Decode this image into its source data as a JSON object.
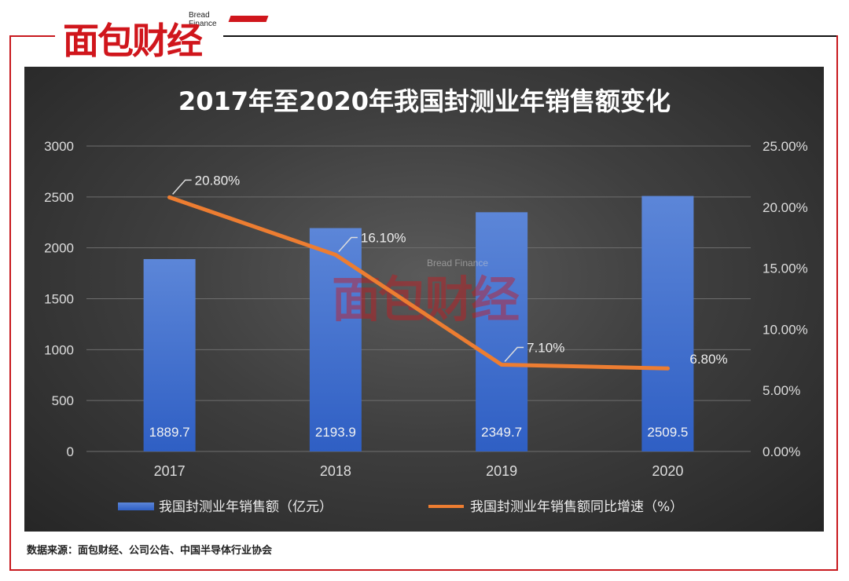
{
  "header": {
    "logo_text": "面包财经",
    "logo_subtitle": "Bread Finance"
  },
  "watermark": {
    "text": "面包财经",
    "subtitle": "Bread Finance"
  },
  "footer": {
    "source": "数据来源：面包财经、公司公告、中国半导体行业协会"
  },
  "colors": {
    "bar": "#4a79d6",
    "line": "#ed7d31",
    "brand_red": "#c8191e"
  },
  "chart_data": {
    "type": "bar",
    "title": "2017年至2020年我国封测业年销售额变化",
    "categories": [
      "2017",
      "2018",
      "2019",
      "2020"
    ],
    "series": [
      {
        "name": "我国封测业年销售额（亿元）",
        "type": "bar",
        "axis": "left",
        "values": [
          1889.7,
          2193.9,
          2349.7,
          2509.5
        ],
        "labels": [
          "1889.7",
          "2193.9",
          "2349.7",
          "2509.5"
        ]
      },
      {
        "name": "我国封测业年销售额同比增速（%）",
        "type": "line",
        "axis": "right",
        "values": [
          20.8,
          16.1,
          7.1,
          6.8
        ],
        "labels": [
          "20.80%",
          "16.10%",
          "7.10%",
          "6.80%"
        ]
      }
    ],
    "y_left": {
      "ylim": [
        0,
        3000
      ],
      "ticks": [
        0,
        500,
        1000,
        1500,
        2000,
        2500,
        3000
      ],
      "tick_labels": [
        "0",
        "500",
        "1000",
        "1500",
        "2000",
        "2500",
        "3000"
      ]
    },
    "y_right": {
      "ylim": [
        0,
        25
      ],
      "ticks": [
        0,
        5,
        10,
        15,
        20,
        25
      ],
      "tick_labels": [
        "0.00%",
        "5.00%",
        "10.00%",
        "15.00%",
        "20.00%",
        "25.00%"
      ]
    },
    "grid": true,
    "legend_position": "bottom"
  }
}
